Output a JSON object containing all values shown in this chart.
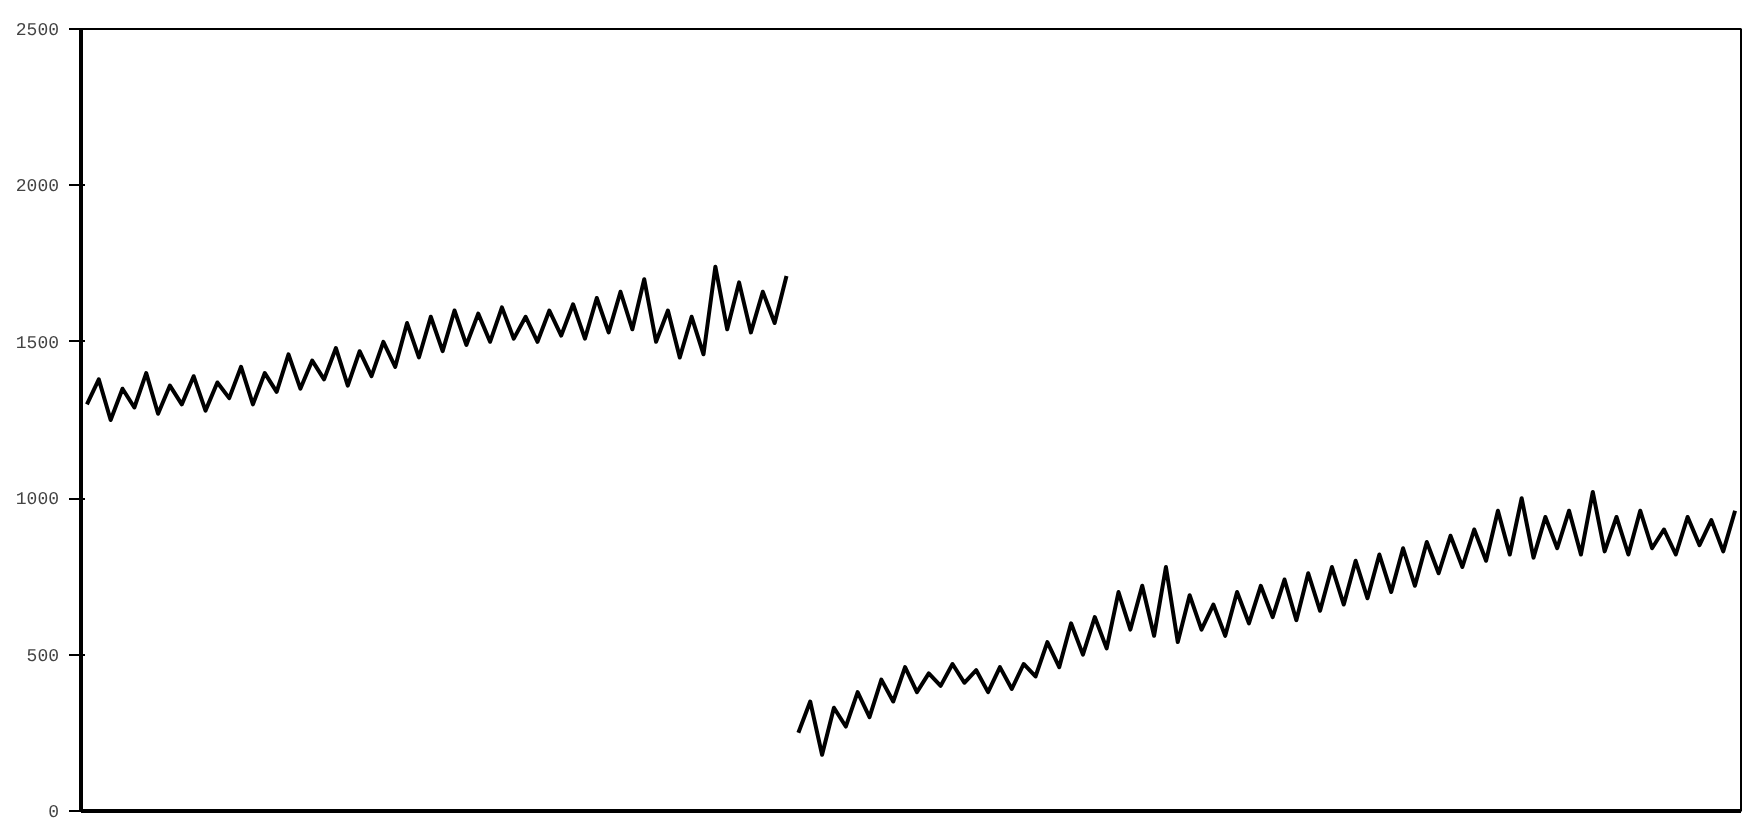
{
  "chart_data": {
    "type": "line",
    "categories": [
      null,
      null,
      null,
      null,
      null,
      null,
      null,
      null,
      null,
      null,
      null,
      null,
      null,
      null,
      null,
      null,
      null,
      null,
      null,
      null,
      null,
      null,
      null,
      null,
      null,
      null,
      null,
      null,
      null,
      null,
      null,
      null,
      null,
      null,
      null,
      null,
      null,
      null,
      null,
      null,
      null,
      null,
      null,
      null,
      null,
      null,
      null,
      null,
      null,
      null,
      null,
      null,
      null,
      null,
      null,
      null,
      null,
      null,
      null,
      null,
      null,
      null,
      null,
      null,
      null,
      null,
      null,
      null,
      null,
      null,
      null,
      null,
      null,
      null,
      null,
      null,
      null,
      null,
      null,
      null,
      null,
      null,
      null,
      null,
      null,
      null,
      null,
      null,
      null,
      null,
      null,
      null,
      null,
      null,
      null,
      null,
      null,
      null,
      null,
      null,
      null,
      null,
      null,
      null,
      null,
      null,
      null,
      null,
      null,
      null,
      null,
      null,
      null,
      null,
      null,
      null,
      null,
      null,
      null,
      null,
      null,
      null,
      null,
      null,
      null,
      null,
      null,
      null,
      null,
      null,
      null,
      null,
      null,
      null,
      null,
      null,
      null,
      null,
      null,
      null
    ],
    "series": [
      {
        "color": "#000000",
        "values": [
          1300,
          1380,
          1250,
          1350,
          1290,
          1400,
          1270,
          1360,
          1300,
          1390,
          1280,
          1370,
          1320,
          1420,
          1300,
          1400,
          1340,
          1460,
          1350,
          1440,
          1380,
          1480,
          1360,
          1470,
          1390,
          1500,
          1420,
          1560,
          1450,
          1580,
          1470,
          1600,
          1490,
          1590,
          1500,
          1610,
          1510,
          1580,
          1500,
          1600,
          1520,
          1620,
          1510,
          1640,
          1530,
          1660,
          1540,
          1700,
          1500,
          1600,
          1450,
          1580,
          1460,
          1740,
          1540,
          1690,
          1530,
          1660,
          1560,
          1710,
          null,
          null,
          null,
          null,
          null,
          null,
          null,
          null,
          null,
          null,
          null,
          null,
          null,
          null,
          null,
          null,
          null,
          null,
          null,
          null,
          null,
          null,
          null,
          null,
          null,
          null,
          null,
          null,
          null,
          null,
          null,
          null,
          null,
          null,
          null,
          null,
          null,
          null,
          null,
          null,
          null,
          null,
          null,
          null,
          null,
          null,
          null,
          null,
          null,
          null,
          null,
          null,
          null,
          null,
          null,
          null,
          null,
          null,
          null,
          null,
          null,
          null,
          null,
          null,
          null,
          null,
          null,
          null,
          null,
          null,
          null,
          null,
          null,
          null,
          null,
          null,
          null,
          null,
          null,
          null
        ]
      },
      {
        "color": "#000000",
        "values": [
          null,
          null,
          null,
          null,
          null,
          null,
          null,
          null,
          null,
          null,
          null,
          null,
          null,
          null,
          null,
          null,
          null,
          null,
          null,
          null,
          null,
          null,
          null,
          null,
          null,
          null,
          null,
          null,
          null,
          null,
          null,
          null,
          null,
          null,
          null,
          null,
          null,
          null,
          null,
          null,
          null,
          null,
          null,
          null,
          null,
          null,
          null,
          null,
          null,
          null,
          null,
          null,
          null,
          null,
          null,
          null,
          null,
          null,
          null,
          null,
          250,
          350,
          180,
          330,
          270,
          380,
          300,
          420,
          350,
          460,
          380,
          440,
          400,
          470,
          410,
          450,
          380,
          460,
          390,
          470,
          430,
          540,
          460,
          600,
          500,
          620,
          520,
          700,
          580,
          720,
          560,
          780,
          540,
          690,
          580,
          660,
          560,
          700,
          600,
          720,
          620,
          740,
          610,
          760,
          640,
          780,
          660,
          800,
          680,
          820,
          700,
          840,
          720,
          860,
          760,
          880,
          780,
          900,
          800,
          960,
          820,
          1000,
          810,
          940,
          840,
          960,
          820,
          1020,
          830,
          940,
          820,
          960,
          840,
          900,
          820,
          940,
          850,
          930,
          830,
          960
        ]
      }
    ],
    "ylim": [
      0,
      2500
    ],
    "yticks": [
      0,
      500,
      1000,
      1500,
      2000,
      2500
    ],
    "grid": false,
    "marker": "none",
    "line_style": "solid",
    "tick_labels": "y"
  }
}
